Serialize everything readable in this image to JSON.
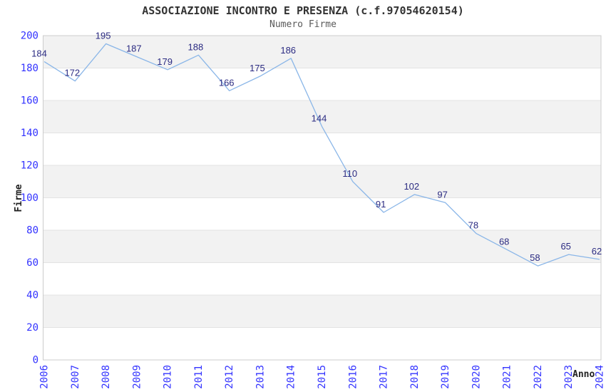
{
  "chart_data": {
    "type": "line",
    "title": "ASSOCIAZIONE INCONTRO E PRESENZA (c.f.97054620154)",
    "subtitle": "Numero Firme",
    "xlabel": "Anno",
    "ylabel": "Firme",
    "categories": [
      "2006",
      "2007",
      "2008",
      "2009",
      "2010",
      "2011",
      "2012",
      "2013",
      "2014",
      "2015",
      "2016",
      "2017",
      "2018",
      "2019",
      "2020",
      "2021",
      "2022",
      "2023",
      "2024"
    ],
    "series": [
      {
        "name": "Numero Firme",
        "values": [
          184,
          172,
          195,
          187,
          179,
          188,
          166,
          175,
          186,
          144,
          110,
          91,
          102,
          97,
          78,
          68,
          58,
          65,
          62
        ]
      }
    ],
    "ylim": [
      0,
      200
    ],
    "ytick_step": 20,
    "yticks": [
      0,
      20,
      40,
      60,
      80,
      100,
      120,
      140,
      160,
      180,
      200
    ],
    "xtick_rotation": -90,
    "grid": "horizontal-alternating-bands",
    "legend": "none",
    "data_labels": "shown-above-points",
    "colors": {
      "line": "#8ab6e8",
      "data_label": "#2b2b82",
      "tick_label": "#3333ff",
      "title": "#333333",
      "subtitle": "#5a5a5a",
      "band_gray": "#f2f2f2",
      "band_white": "#ffffff",
      "gridline": "#e3e3e3",
      "plot_border": "#cccccc",
      "background": "#ffffff"
    }
  }
}
